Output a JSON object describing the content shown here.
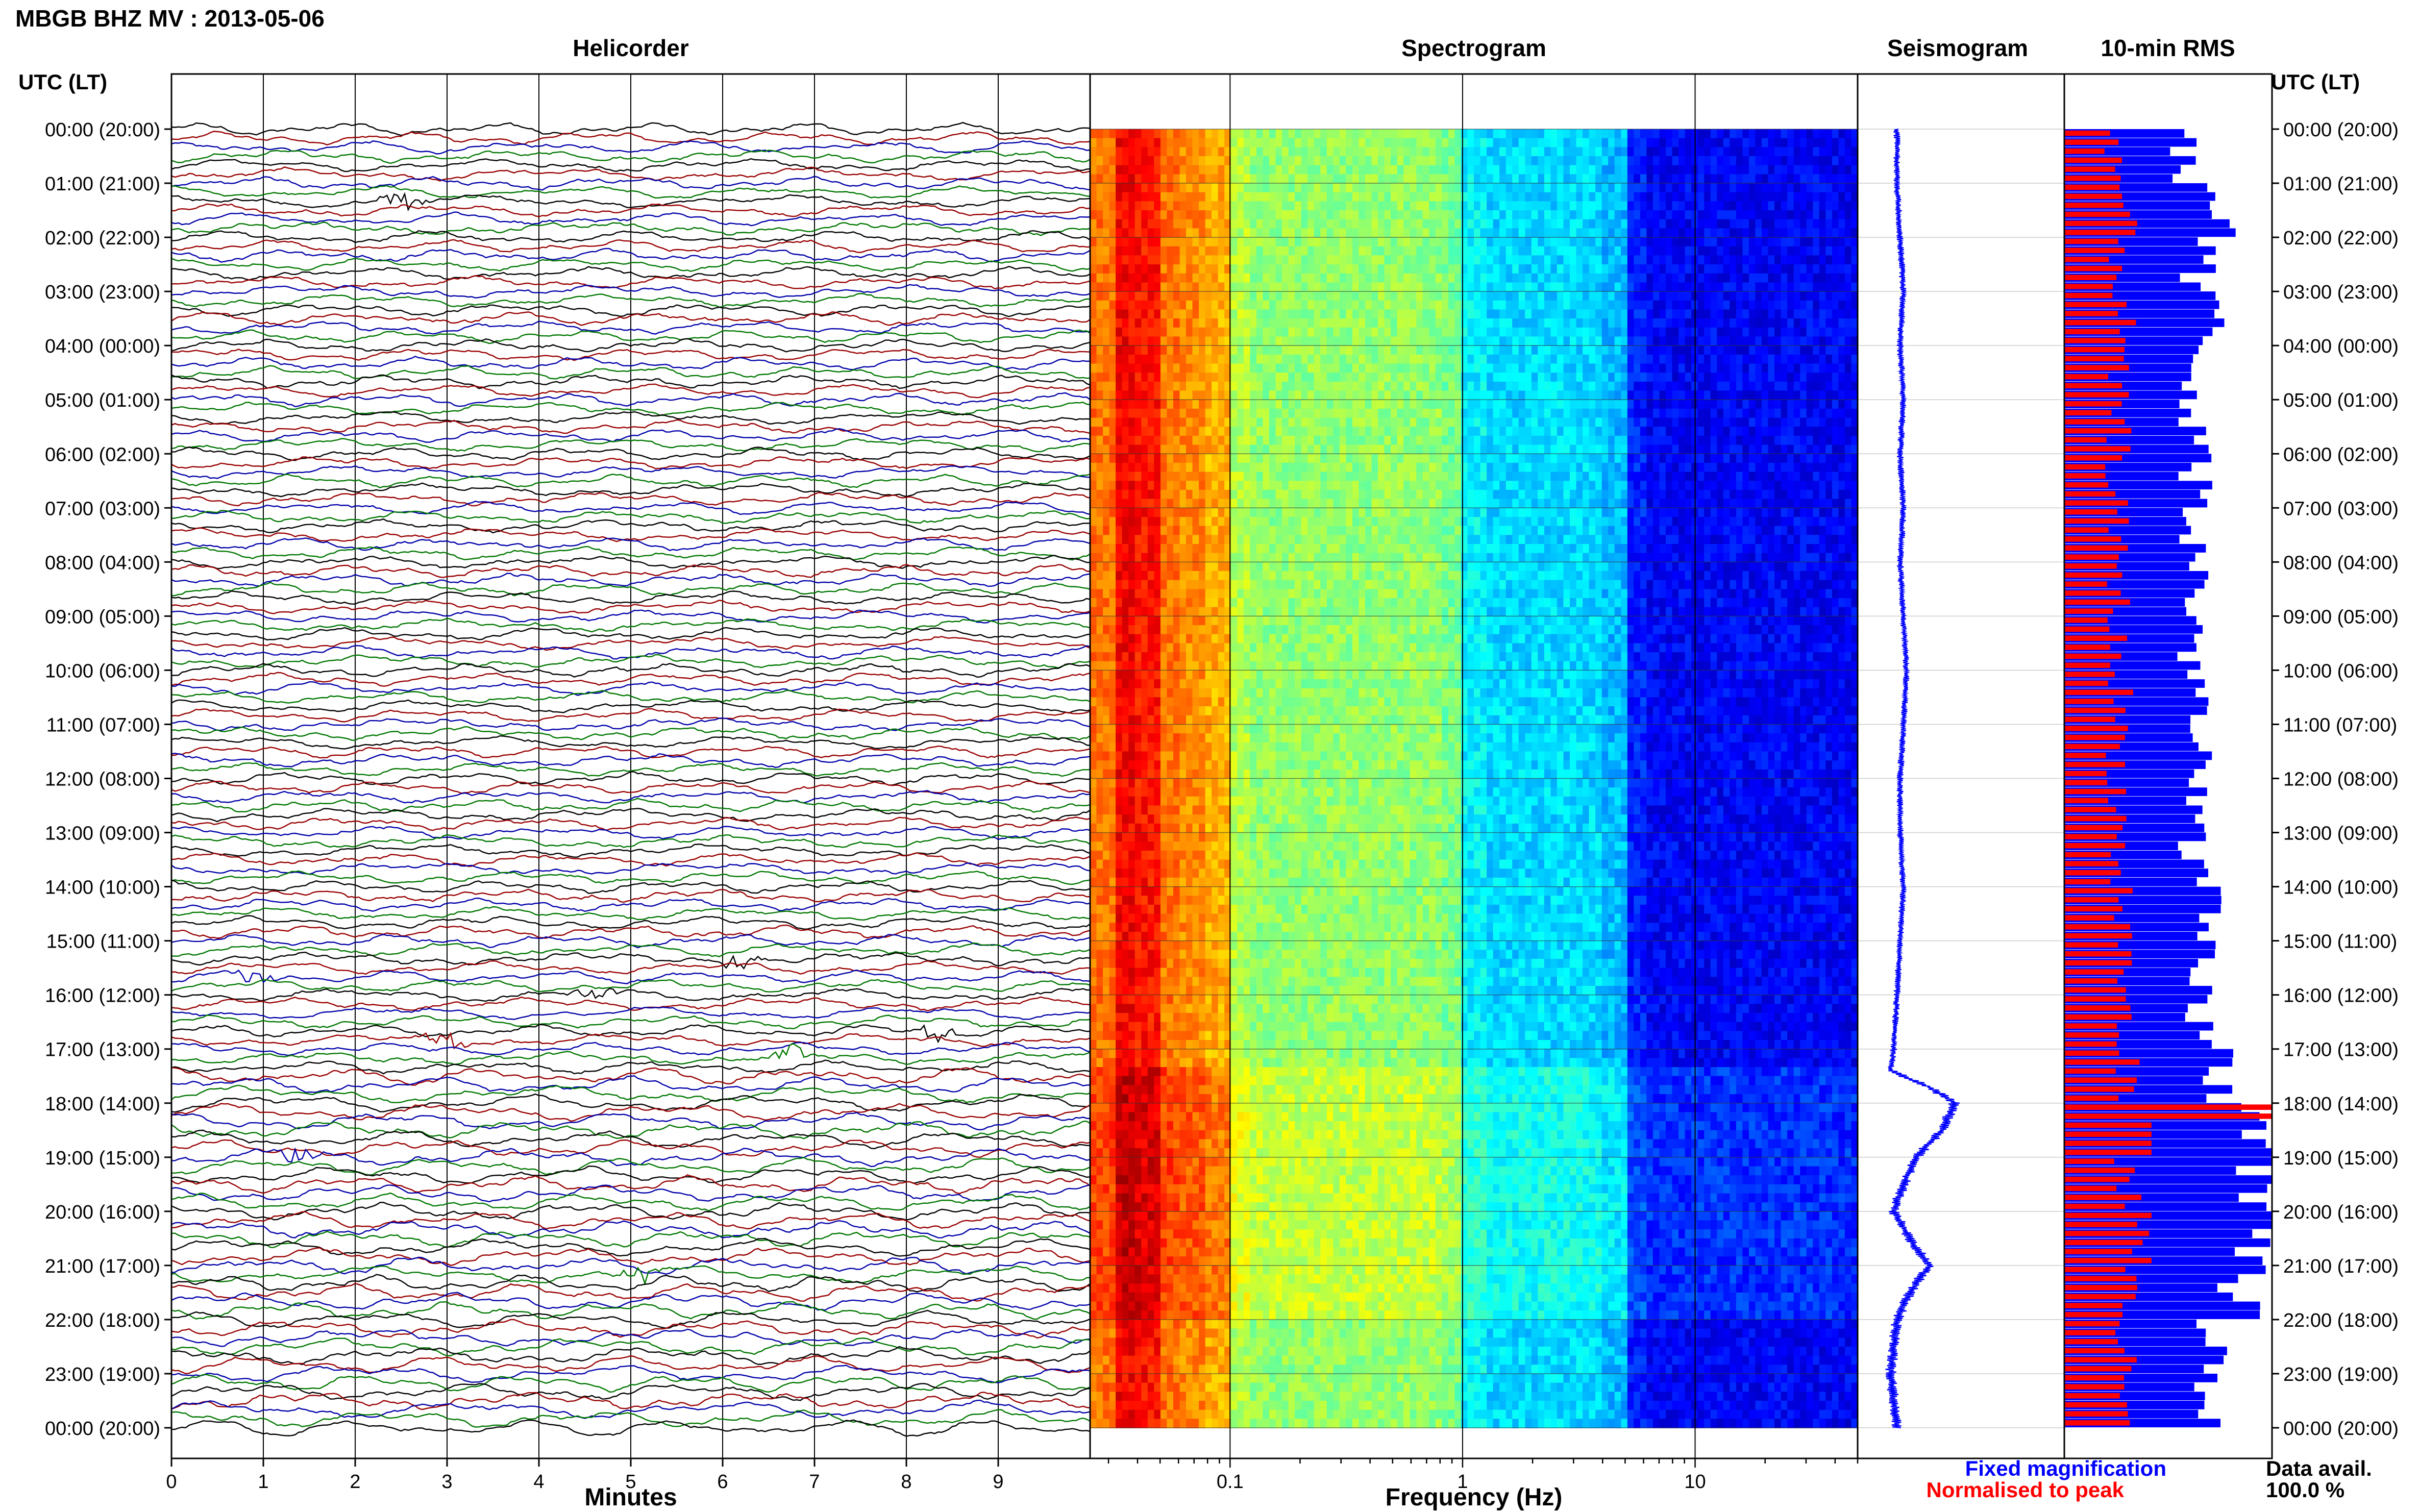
{
  "header": {
    "title": "MBGB BHZ MV : 2013-05-06"
  },
  "panels": {
    "helicorder": "Helicorder",
    "spectrogram": "Spectrogram",
    "seismogram": "Seismogram",
    "rms": "10-min RMS"
  },
  "axis": {
    "left_caption": "UTC (LT)",
    "right_caption": "UTC (LT)",
    "minutes_label": "Minutes",
    "frequency_label": "Frequency (Hz)"
  },
  "footer": {
    "legend_fixed": "Fixed magnification",
    "legend_normalised": "Normalised to peak",
    "data_avail_label": "Data avail.",
    "data_avail_value": "100.0 %"
  },
  "colors": {
    "fixed": "#0000ff",
    "normalised": "#ff0000",
    "trace_cycle": [
      "#000000",
      "#990000",
      "#0000aa",
      "#007700"
    ]
  },
  "chart_data": [
    {
      "type": "line",
      "panel": "helicorder",
      "title": "Helicorder",
      "xlabel": "Minutes",
      "xlim": [
        0,
        10
      ],
      "x_ticks": [
        "0",
        "1",
        "2",
        "3",
        "4",
        "5",
        "6",
        "7",
        "8",
        "9"
      ],
      "ylim": [
        0,
        24
      ],
      "hour_labels": [
        "00:00 (20:00)",
        "01:00 (21:00)",
        "02:00 (22:00)",
        "03:00 (23:00)",
        "04:00 (00:00)",
        "05:00 (01:00)",
        "06:00 (02:00)",
        "07:00 (03:00)",
        "08:00 (04:00)",
        "09:00 (05:00)",
        "10:00 (06:00)",
        "11:00 (07:00)",
        "12:00 (08:00)",
        "13:00 (09:00)",
        "14:00 (10:00)",
        "15:00 (11:00)",
        "16:00 (12:00)",
        "17:00 (13:00)",
        "18:00 (14:00)",
        "19:00 (15:00)",
        "20:00 (16:00)",
        "21:00 (17:00)",
        "22:00 (18:00)",
        "23:00 (19:00)",
        "00:00 (20:00)"
      ],
      "traces_per_hour": 6,
      "events_utc_hours": [
        1.3,
        15.3,
        15.6,
        16.0,
        16.6,
        16.9,
        17.2,
        19.0,
        21.2
      ]
    },
    {
      "type": "heatmap",
      "panel": "spectrogram",
      "title": "Spectrogram",
      "xlabel": "Frequency (Hz)",
      "x_scale": "log",
      "xlim": [
        0.025,
        50
      ],
      "x_ticks": [
        "0.1",
        "1",
        "10"
      ],
      "colormap": "jet",
      "relative_power_bands": [
        {
          "freq_hz": [
            0.025,
            0.05
          ],
          "level": "high"
        },
        {
          "freq_hz": [
            0.05,
            0.1
          ],
          "level": "medium-high"
        },
        {
          "freq_hz": [
            0.1,
            1.0
          ],
          "level": "medium"
        },
        {
          "freq_hz": [
            1.0,
            5.0
          ],
          "level": "low"
        },
        {
          "freq_hz": [
            5.0,
            50.0
          ],
          "level": "very low"
        }
      ]
    },
    {
      "type": "line",
      "panel": "seismogram",
      "title": "Seismogram",
      "series": [
        {
          "hours_utc": [
            0,
            1,
            2,
            3,
            4,
            5,
            6,
            7,
            8,
            9,
            10,
            11,
            12,
            13,
            14,
            15,
            16,
            17,
            17.4,
            17.7,
            18.0,
            18.5,
            19.0,
            19.5,
            20.0,
            20.5,
            21.0,
            21.5,
            22.0,
            23.0,
            24.0
          ],
          "offset": [
            0,
            0,
            0.05,
            0.1,
            0.05,
            0.1,
            0.05,
            0.1,
            0.05,
            0.1,
            0.15,
            0.1,
            0.05,
            0.05,
            0.1,
            0.05,
            0.0,
            -0.05,
            -0.1,
            0.5,
            0.9,
            0.7,
            0.3,
            0.1,
            -0.05,
            0.2,
            0.5,
            0.2,
            0.0,
            -0.1,
            0.0
          ]
        }
      ]
    },
    {
      "type": "bar",
      "panel": "rms",
      "title": "10-min RMS",
      "series": [
        {
          "name": "Fixed magnification",
          "hourly_mean_relative": [
            0.56,
            0.72,
            0.64,
            0.68,
            0.6,
            0.62,
            0.64,
            0.62,
            0.64,
            0.62,
            0.64,
            0.62,
            0.62,
            0.64,
            0.66,
            0.64,
            0.66,
            0.74,
            0.98,
            0.88,
            0.9,
            0.86,
            0.72,
            0.72
          ]
        },
        {
          "name": "Normalised to peak",
          "hourly_mean_relative": [
            0.24,
            0.27,
            0.26,
            0.27,
            0.24,
            0.25,
            0.24,
            0.24,
            0.25,
            0.24,
            0.26,
            0.25,
            0.25,
            0.25,
            0.27,
            0.28,
            0.27,
            0.28,
            1.0,
            0.3,
            0.36,
            0.31,
            0.27,
            0.26
          ]
        }
      ]
    }
  ]
}
